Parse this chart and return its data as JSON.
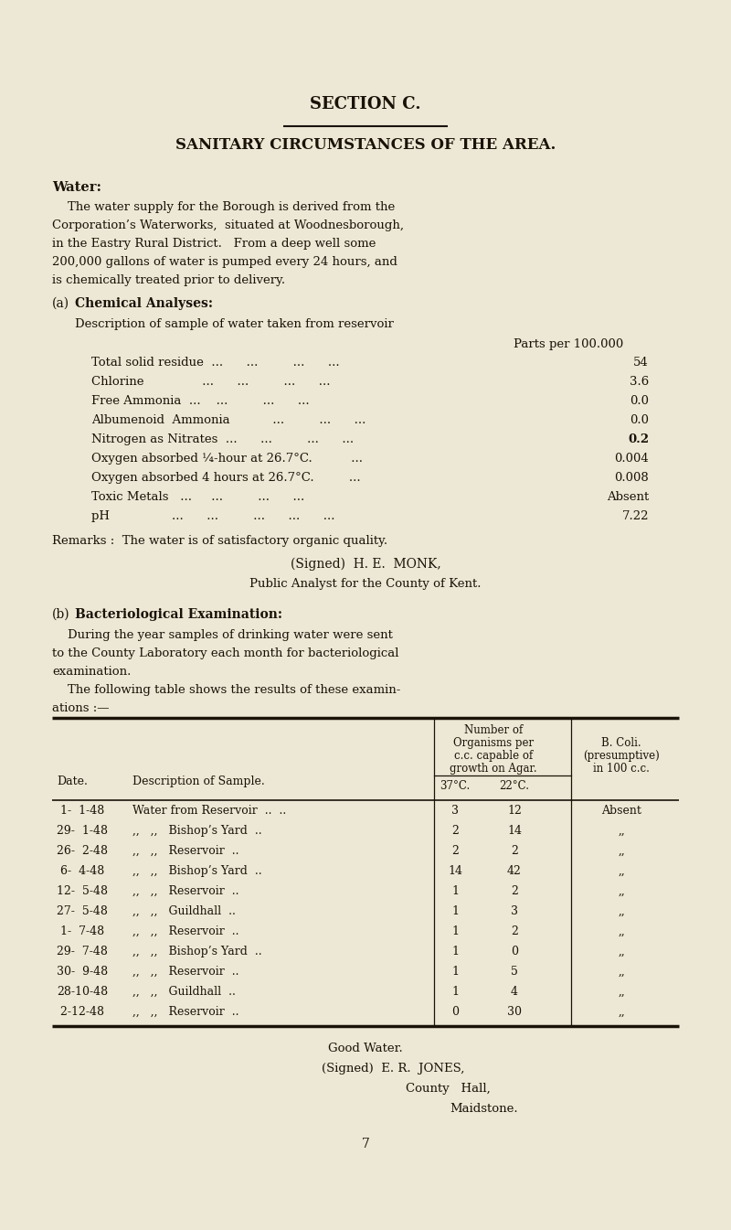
{
  "bg_color": "#ede8d5",
  "text_color": "#1a1208",
  "section_title": "SECTION C.",
  "main_title": "SANITARY CIRCUMSTANCES OF THE AREA.",
  "water_heading": "Water:",
  "water_lines": [
    "    The water supply for the Borough is derived from the",
    "Corporation’s Waterworks,  situated at Woodnesborough,",
    "in the Eastry Rural District.   From a deep well some",
    "200,000 gallons of water is pumped every 24 hours, and",
    "is chemically treated prior to delivery."
  ],
  "chem_heading_a": "(a)",
  "chem_heading_b": "Chemical Analyses:",
  "chem_desc": "Description of sample of water taken from reservoir",
  "chem_unit": "Parts per 100.000",
  "chem_rows": [
    [
      "Total solid residue  ...      ...         ...      ...  ",
      "54"
    ],
    [
      "Chlorine               ...      ...         ...      ...  ",
      "3.6"
    ],
    [
      "Free Ammonia  ...    ...         ...      ...  ",
      "0.0"
    ],
    [
      "Albumenoid  Ammonia           ...         ...      ...  ",
      "0.0"
    ],
    [
      "Nitrogen as Nitrates  ...      ...         ...      ...  ",
      "0.2"
    ],
    [
      "Oxygen absorbed ¼-hour at 26.7°C.          ...  ",
      "0.004"
    ],
    [
      "Oxygen absorbed 4 hours at 26.7°C.         ...  ",
      "0.008"
    ],
    [
      "Toxic Metals   ...     ...         ...      ...  ",
      "Absent"
    ],
    [
      "pH                ...      ...         ...      ...      ...  ",
      "7.22"
    ]
  ],
  "nitrogen_bold": true,
  "remarks_line": "Remarks :  The water is of satisfactory organic quality.",
  "signed_monk": "(Signed)  H. E.  MONK,",
  "public_analyst": "Public Analyst for the County of Kent.",
  "bact_heading_a": "(b)",
  "bact_heading_b": "Bacteriological Examination:",
  "bact_lines": [
    "    During the year samples of drinking water were sent",
    "to the County Laboratory each month for bacteriological",
    "examination.",
    "    The following table shows the results of these examin-",
    "ations :—"
  ],
  "tbl_hdr_num1": "Number of",
  "tbl_hdr_num2": "Organisms per",
  "tbl_hdr_num3": "c.c. capable of",
  "tbl_hdr_num4": "growth on Agar.",
  "tbl_hdr_coli1": "B. Coli.",
  "tbl_hdr_coli2": "(presumptive)",
  "tbl_hdr_coli3": "in 100 c.c.",
  "tbl_hdr_date": "Date.",
  "tbl_hdr_desc": "Description of Sample.",
  "tbl_sub1": "37°C.",
  "tbl_sub2": "22°C.",
  "tbl_rows": [
    [
      " 1-  1-48",
      "Water from Reservoir",
      "..",
      "..",
      "3",
      "12",
      "Absent"
    ],
    [
      "29-  1-48",
      ",,   ,,   Bishop’s Yard",
      "..",
      "..",
      "2",
      "14",
      ",,"
    ],
    [
      "26-  2-48",
      ",,   ,,   Reservoir",
      "..",
      "..",
      "2",
      "2",
      ",,"
    ],
    [
      " 6-  4-48",
      ",,   ,,   Bishop’s Yard",
      "..",
      "..",
      "14",
      "42",
      ",,"
    ],
    [
      "12-  5-48",
      ",,   ,,   Reservoir",
      "..",
      "..",
      "1",
      "2",
      ",,"
    ],
    [
      "27-  5-48",
      ",,   ,,   Guildhall",
      "..",
      "..",
      "1",
      "3",
      ",,"
    ],
    [
      " 1-  7-48",
      ",,   ,,   Reservoir",
      "..",
      "..",
      "1",
      "2",
      ",,"
    ],
    [
      "29-  7-48",
      ",,   ,,   Bishop’s Yard",
      "..",
      "..",
      "1",
      "0",
      ",,"
    ],
    [
      "30-  9-48",
      ",,   ,,   Reservoir",
      "..",
      "..",
      "1",
      "5",
      ",,"
    ],
    [
      "28-10-48",
      ",,   ,,   Guildhall",
      "..",
      "..",
      "1",
      "4",
      ",,"
    ],
    [
      " 2-12-48",
      ",,   ,,   Reservoir",
      "..",
      "..",
      "0",
      "30",
      ",,"
    ]
  ],
  "good_water": "Good Water.",
  "signed_jones": "(Signed)  E. R.  JONES,",
  "county_hall": "County   Hall,",
  "maidstone": "Maidstone.",
  "page_num": "7",
  "lmargin": 0.075,
  "rmargin": 0.96,
  "fig_w": 8.0,
  "fig_h": 13.45
}
